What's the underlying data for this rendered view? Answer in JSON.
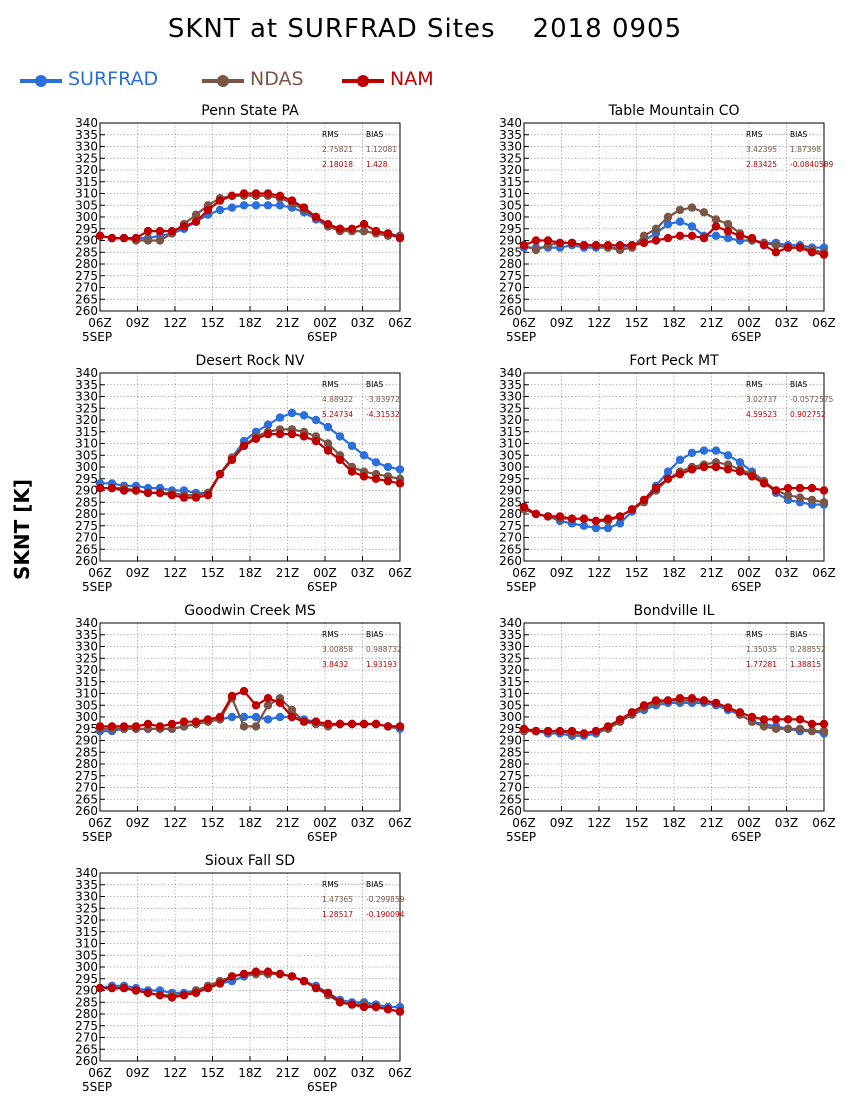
{
  "title": "SKNT at SURFRAD Sites    2018 0905",
  "ylabel": "SKNT [K]",
  "legend": [
    {
      "name": "SURFRAD",
      "color": "#2a6fdb"
    },
    {
      "name": "NDAS",
      "color": "#7b5545"
    },
    {
      "name": "NAM",
      "color": "#c00000"
    }
  ],
  "colors": {
    "surfrad": "#2a6fdb",
    "ndas": "#7b5545",
    "nam": "#c00000"
  },
  "chart_data": [
    {
      "type": "line",
      "title": "Penn State PA",
      "xticks": [
        "06Z",
        "09Z",
        "12Z",
        "15Z",
        "18Z",
        "21Z",
        "00Z",
        "03Z",
        "06Z"
      ],
      "xdates": [
        "5SEP",
        "6SEP"
      ],
      "ylim": [
        260,
        340
      ],
      "yticks": [
        260,
        265,
        270,
        275,
        280,
        285,
        290,
        295,
        300,
        305,
        310,
        315,
        320,
        325,
        330,
        335,
        340
      ],
      "grid": true,
      "stats": {
        "header": [
          "RMS",
          "BIAS"
        ],
        "ndas": [
          "2.75821",
          "1.12081"
        ],
        "nam": [
          "2.18018",
          "1.428"
        ]
      },
      "series": [
        {
          "name": "SURFRAD",
          "values": [
            292,
            291,
            291,
            291,
            291,
            292,
            293,
            295,
            298,
            301,
            303,
            304,
            305,
            305,
            305,
            305,
            304,
            302,
            299,
            296,
            295,
            294,
            294,
            293,
            293,
            292
          ]
        },
        {
          "name": "NDAS",
          "values": [
            292,
            291,
            291,
            290,
            290,
            290,
            293,
            297,
            301,
            305,
            308,
            309,
            309,
            309,
            309,
            308,
            306,
            303,
            300,
            296,
            294,
            294,
            294,
            293,
            292,
            292
          ]
        },
        {
          "name": "NAM",
          "values": [
            292,
            291,
            291,
            291,
            294,
            294,
            294,
            296,
            298,
            303,
            307,
            309,
            310,
            310,
            310,
            309,
            307,
            304,
            300,
            297,
            295,
            295,
            297,
            294,
            293,
            291
          ]
        }
      ]
    },
    {
      "type": "line",
      "title": "Table Mountain CO",
      "xticks": [
        "06Z",
        "09Z",
        "12Z",
        "15Z",
        "18Z",
        "21Z",
        "00Z",
        "03Z",
        "06Z"
      ],
      "xdates": [
        "5SEP",
        "6SEP"
      ],
      "ylim": [
        260,
        340
      ],
      "yticks": [
        260,
        265,
        270,
        275,
        280,
        285,
        290,
        295,
        300,
        305,
        310,
        315,
        320,
        325,
        330,
        335,
        340
      ],
      "grid": true,
      "stats": {
        "header": [
          "RMS",
          "BIAS"
        ],
        "ndas": [
          "3.42395",
          "1.87398"
        ],
        "nam": [
          "2.83425",
          "-0.0840589"
        ]
      },
      "series": [
        {
          "name": "SURFRAD",
          "values": [
            287,
            287,
            287,
            287,
            288,
            287,
            287,
            287,
            287,
            288,
            290,
            293,
            297,
            298,
            296,
            292,
            292,
            291,
            290,
            290,
            289,
            289,
            288,
            288,
            287,
            287
          ]
        },
        {
          "name": "NDAS",
          "values": [
            288,
            286,
            288,
            289,
            289,
            288,
            288,
            287,
            286,
            287,
            292,
            295,
            300,
            303,
            304,
            302,
            299,
            297,
            293,
            290,
            289,
            288,
            287,
            287,
            286,
            285
          ]
        },
        {
          "name": "NAM",
          "values": [
            288,
            290,
            290,
            289,
            289,
            288,
            288,
            288,
            288,
            288,
            289,
            290,
            291,
            292,
            292,
            291,
            296,
            294,
            292,
            291,
            288,
            285,
            287,
            287,
            285,
            284
          ]
        }
      ]
    },
    {
      "type": "line",
      "title": "Desert Rock NV",
      "xticks": [
        "06Z",
        "09Z",
        "12Z",
        "15Z",
        "18Z",
        "21Z",
        "00Z",
        "03Z",
        "06Z"
      ],
      "xdates": [
        "5SEP",
        "6SEP"
      ],
      "ylim": [
        260,
        340
      ],
      "yticks": [
        260,
        265,
        270,
        275,
        280,
        285,
        290,
        295,
        300,
        305,
        310,
        315,
        320,
        325,
        330,
        335,
        340
      ],
      "grid": true,
      "stats": {
        "header": [
          "RMS",
          "BIAS"
        ],
        "ndas": [
          "4.88922",
          "-3.83972"
        ],
        "nam": [
          "5.24734",
          "-4.31532"
        ]
      },
      "series": [
        {
          "name": "SURFRAD",
          "values": [
            293,
            293,
            292,
            292,
            291,
            291,
            290,
            290,
            289,
            289,
            297,
            304,
            311,
            315,
            318,
            321,
            323,
            322,
            320,
            317,
            313,
            309,
            305,
            302,
            300,
            299
          ]
        },
        {
          "name": "NDAS",
          "values": [
            291,
            291,
            291,
            290,
            289,
            289,
            289,
            288,
            288,
            289,
            297,
            304,
            309,
            313,
            315,
            316,
            316,
            315,
            313,
            310,
            305,
            300,
            298,
            297,
            296,
            295
          ]
        },
        {
          "name": "NAM",
          "values": [
            291,
            291,
            290,
            290,
            289,
            289,
            288,
            287,
            287,
            288,
            297,
            303,
            309,
            312,
            314,
            314,
            314,
            313,
            311,
            307,
            303,
            298,
            296,
            295,
            294,
            293
          ]
        }
      ]
    },
    {
      "type": "line",
      "title": "Fort Peck MT",
      "xticks": [
        "06Z",
        "09Z",
        "12Z",
        "15Z",
        "18Z",
        "21Z",
        "00Z",
        "03Z",
        "06Z"
      ],
      "xdates": [
        "5SEP",
        "6SEP"
      ],
      "ylim": [
        260,
        340
      ],
      "yticks": [
        260,
        265,
        270,
        275,
        280,
        285,
        290,
        295,
        300,
        305,
        310,
        315,
        320,
        325,
        330,
        335,
        340
      ],
      "grid": true,
      "stats": {
        "header": [
          "RMS",
          "BIAS"
        ],
        "ndas": [
          "3.02737",
          "-0.0572575"
        ],
        "nam": [
          "4.59523",
          "0.902752"
        ]
      },
      "series": [
        {
          "name": "SURFRAD",
          "values": [
            283,
            280,
            279,
            277,
            276,
            275,
            274,
            274,
            276,
            281,
            286,
            292,
            298,
            303,
            306,
            307,
            307,
            305,
            302,
            298,
            294,
            289,
            286,
            285,
            284,
            284
          ]
        },
        {
          "name": "NDAS",
          "values": [
            282,
            280,
            279,
            278,
            278,
            278,
            277,
            277,
            279,
            282,
            285,
            290,
            295,
            298,
            300,
            301,
            302,
            301,
            299,
            297,
            294,
            290,
            288,
            287,
            286,
            285
          ]
        },
        {
          "name": "NAM",
          "values": [
            283,
            280,
            279,
            279,
            278,
            278,
            277,
            278,
            279,
            282,
            286,
            291,
            295,
            297,
            299,
            300,
            300,
            299,
            298,
            296,
            293,
            290,
            291,
            291,
            291,
            290
          ]
        }
      ]
    },
    {
      "type": "line",
      "title": "Goodwin Creek MS",
      "xticks": [
        "06Z",
        "09Z",
        "12Z",
        "15Z",
        "18Z",
        "21Z",
        "00Z",
        "03Z",
        "06Z"
      ],
      "xdates": [
        "5SEP",
        "6SEP"
      ],
      "ylim": [
        260,
        340
      ],
      "yticks": [
        260,
        265,
        270,
        275,
        280,
        285,
        290,
        295,
        300,
        305,
        310,
        315,
        320,
        325,
        330,
        335,
        340
      ],
      "grid": true,
      "stats": {
        "header": [
          "RMS",
          "BIAS"
        ],
        "ndas": [
          "3.00858",
          "0.988732"
        ],
        "nam": [
          "3.8432",
          "1.93193"
        ]
      },
      "series": [
        {
          "name": "SURFRAD",
          "values": [
            294,
            294,
            295,
            295,
            295,
            295,
            295,
            296,
            297,
            298,
            299,
            300,
            300,
            300,
            299,
            300,
            300,
            299,
            298,
            297,
            297,
            297,
            297,
            297,
            296,
            295
          ]
        },
        {
          "name": "NDAS",
          "values": [
            295,
            295,
            295,
            295,
            295,
            295,
            295,
            296,
            297,
            298,
            299,
            308,
            296,
            296,
            305,
            308,
            303,
            298,
            297,
            296,
            297,
            297,
            297,
            297,
            296,
            296
          ]
        },
        {
          "name": "NAM",
          "values": [
            296,
            296,
            296,
            296,
            297,
            296,
            297,
            298,
            298,
            299,
            300,
            309,
            311,
            305,
            308,
            306,
            300,
            298,
            298,
            297,
            297,
            297,
            297,
            297,
            296,
            296
          ]
        }
      ]
    },
    {
      "type": "line",
      "title": "Bondville IL",
      "xticks": [
        "06Z",
        "09Z",
        "12Z",
        "15Z",
        "18Z",
        "21Z",
        "00Z",
        "03Z",
        "06Z"
      ],
      "xdates": [
        "5SEP",
        "6SEP"
      ],
      "ylim": [
        260,
        340
      ],
      "yticks": [
        260,
        265,
        270,
        275,
        280,
        285,
        290,
        295,
        300,
        305,
        310,
        315,
        320,
        325,
        330,
        335,
        340
      ],
      "grid": true,
      "stats": {
        "header": [
          "RMS",
          "BIAS"
        ],
        "ndas": [
          "1.35035",
          "0.288552"
        ],
        "nam": [
          "1.77281",
          "1.38815"
        ]
      },
      "series": [
        {
          "name": "SURFRAD",
          "values": [
            294,
            294,
            293,
            293,
            292,
            292,
            293,
            295,
            298,
            301,
            303,
            305,
            306,
            306,
            306,
            306,
            305,
            303,
            301,
            298,
            297,
            296,
            295,
            294,
            294,
            293
          ]
        },
        {
          "name": "NDAS",
          "values": [
            294,
            294,
            294,
            294,
            293,
            293,
            294,
            295,
            298,
            301,
            304,
            306,
            307,
            307,
            307,
            307,
            306,
            304,
            301,
            298,
            296,
            295,
            295,
            295,
            294,
            294
          ]
        },
        {
          "name": "NAM",
          "values": [
            295,
            294,
            294,
            294,
            294,
            293,
            294,
            296,
            299,
            302,
            305,
            307,
            307,
            308,
            308,
            307,
            306,
            304,
            302,
            300,
            299,
            299,
            299,
            299,
            297,
            297
          ]
        }
      ]
    },
    {
      "type": "line",
      "title": "Sioux Fall SD",
      "xticks": [
        "06Z",
        "09Z",
        "12Z",
        "15Z",
        "18Z",
        "21Z",
        "00Z",
        "03Z",
        "06Z"
      ],
      "xdates": [
        "5SEP",
        "6SEP"
      ],
      "ylim": [
        260,
        340
      ],
      "yticks": [
        260,
        265,
        270,
        275,
        280,
        285,
        290,
        295,
        300,
        305,
        310,
        315,
        320,
        325,
        330,
        335,
        340
      ],
      "grid": true,
      "stats": {
        "header": [
          "RMS",
          "BIAS"
        ],
        "ndas": [
          "1.47365",
          "-0.299859"
        ],
        "nam": [
          "1.28517",
          "-0.190094"
        ]
      },
      "series": [
        {
          "name": "SURFRAD",
          "values": [
            291,
            292,
            292,
            291,
            290,
            290,
            289,
            289,
            290,
            291,
            293,
            294,
            296,
            297,
            297,
            297,
            296,
            294,
            292,
            289,
            286,
            285,
            285,
            284,
            283,
            283
          ]
        },
        {
          "name": "NDAS",
          "values": [
            291,
            291,
            291,
            290,
            289,
            288,
            288,
            288,
            290,
            292,
            294,
            296,
            297,
            297,
            297,
            297,
            296,
            294,
            291,
            288,
            285,
            284,
            284,
            283,
            282,
            281
          ]
        },
        {
          "name": "NAM",
          "values": [
            291,
            291,
            291,
            290,
            289,
            288,
            287,
            288,
            289,
            291,
            293,
            296,
            297,
            298,
            298,
            297,
            296,
            294,
            291,
            289,
            285,
            284,
            283,
            283,
            282,
            281
          ]
        }
      ]
    }
  ]
}
